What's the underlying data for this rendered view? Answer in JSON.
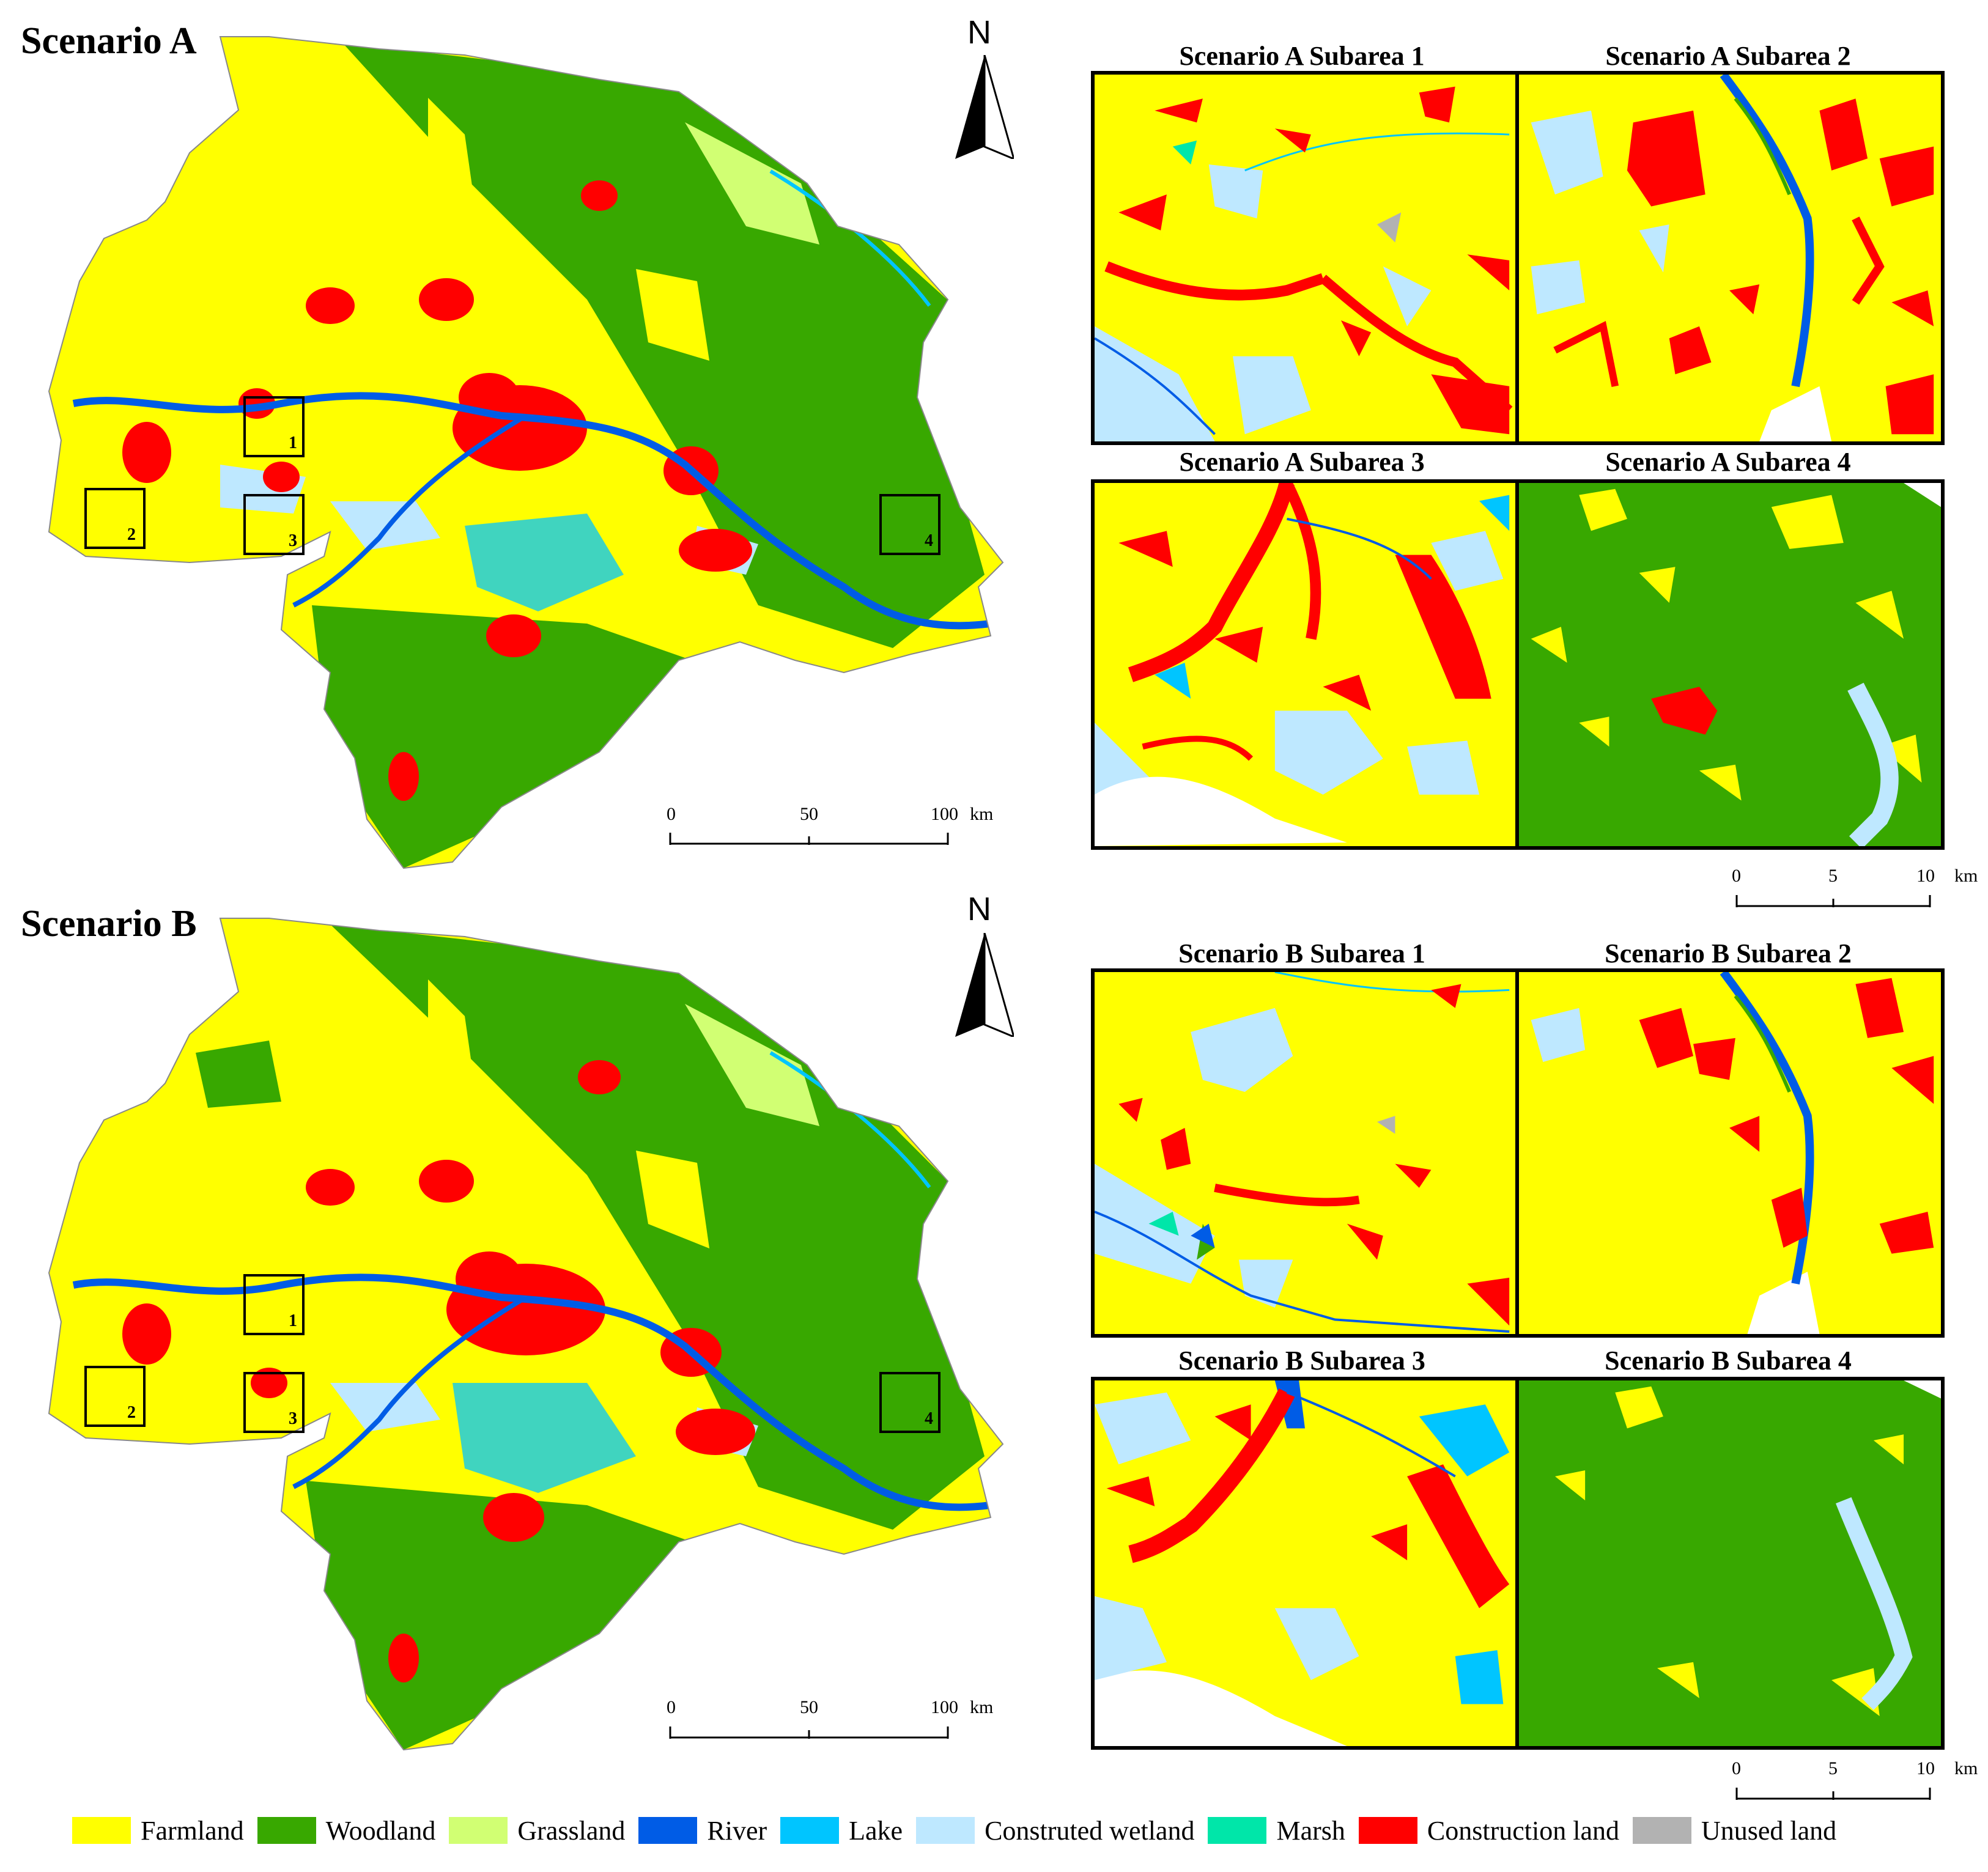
{
  "colors": {
    "farmland": "#ffff00",
    "woodland": "#38a800",
    "grassland": "#d1ff73",
    "river": "#005ce6",
    "lake": "#00c5ff",
    "constructed_wetland": "#bee8ff",
    "marsh": "#00e6a9",
    "construction": "#ff0000",
    "unused": "#b2b2b2"
  },
  "scenario_a": {
    "title": "Scenario A",
    "north": "N",
    "scale": {
      "t0": "0",
      "t1": "50",
      "t2": "100",
      "unit": "km"
    },
    "box_labels": [
      "1",
      "2",
      "3",
      "4"
    ],
    "subareas": [
      {
        "title": "Scenario A Subarea 1"
      },
      {
        "title": "Scenario A Subarea 2"
      },
      {
        "title": "Scenario A Subarea 3"
      },
      {
        "title": "Scenario A Subarea 4"
      }
    ],
    "sub_scale": {
      "t0": "0",
      "t1": "5",
      "t2": "10",
      "unit": "km"
    }
  },
  "scenario_b": {
    "title": "Scenario B",
    "north": "N",
    "scale": {
      "t0": "0",
      "t1": "50",
      "t2": "100",
      "unit": "km"
    },
    "box_labels": [
      "1",
      "2",
      "3",
      "4"
    ],
    "subareas": [
      {
        "title": "Scenario B Subarea 1"
      },
      {
        "title": "Scenario B Subarea 2"
      },
      {
        "title": "Scenario B Subarea 3"
      },
      {
        "title": "Scenario B Subarea 4"
      }
    ],
    "sub_scale": {
      "t0": "0",
      "t1": "5",
      "t2": "10",
      "unit": "km"
    }
  },
  "legend": [
    {
      "label": "Farmland",
      "color": "#ffff00"
    },
    {
      "label": "Woodland",
      "color": "#38a800"
    },
    {
      "label": "Grassland",
      "color": "#d1ff73"
    },
    {
      "label": "River",
      "color": "#005ce6"
    },
    {
      "label": "Lake",
      "color": "#00c5ff"
    },
    {
      "label": "Construted wetland",
      "color": "#bee8ff"
    },
    {
      "label": "Marsh",
      "color": "#00e6a9"
    },
    {
      "label": "Construction land",
      "color": "#ff0000"
    },
    {
      "label": "Unused land",
      "color": "#b2b2b2"
    }
  ]
}
